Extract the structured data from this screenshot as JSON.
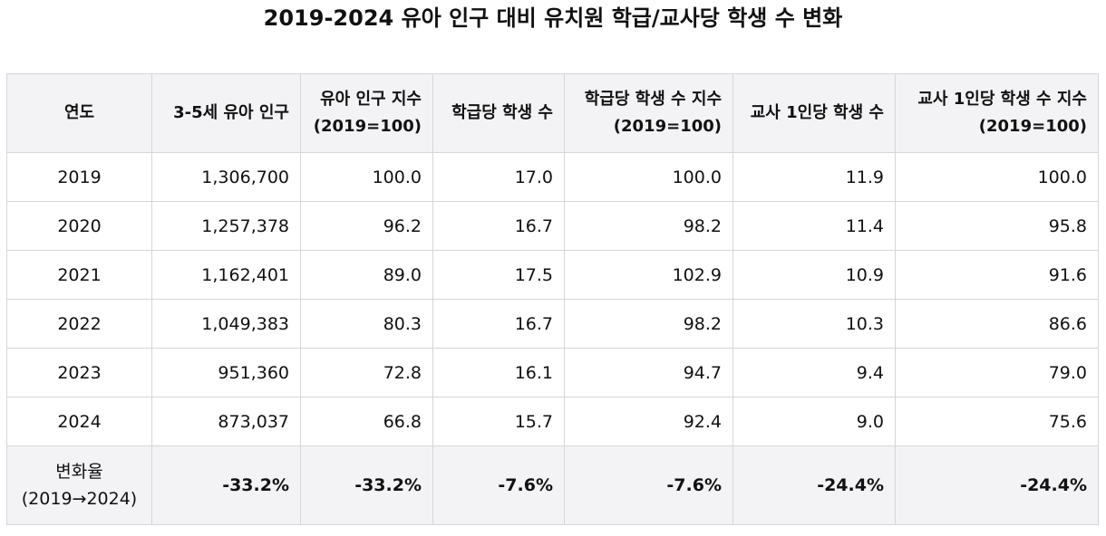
{
  "title": "2019-2024 유아 인구 대비 유치원 학급/교사당 학생 수 변화",
  "table": {
    "headers": [
      {
        "line1": "연도",
        "line2": ""
      },
      {
        "line1": "3-5세 유아 인구",
        "line2": ""
      },
      {
        "line1": "유아 인구 지수",
        "line2": "(2019=100)"
      },
      {
        "line1": "학급당 학생 수",
        "line2": ""
      },
      {
        "line1": "학급당 학생 수 지수",
        "line2": "(2019=100)"
      },
      {
        "line1": "교사 1인당 학생 수",
        "line2": ""
      },
      {
        "line1": "교사 1인당 학생 수 지수",
        "line2": "(2019=100)"
      }
    ],
    "rows": [
      [
        "2019",
        "1,306,700",
        "100.0",
        "17.0",
        "100.0",
        "11.9",
        "100.0"
      ],
      [
        "2020",
        "1,257,378",
        "96.2",
        "16.7",
        "98.2",
        "11.4",
        "95.8"
      ],
      [
        "2021",
        "1,162,401",
        "89.0",
        "17.5",
        "102.9",
        "10.9",
        "91.6"
      ],
      [
        "2022",
        "1,049,383",
        "80.3",
        "16.7",
        "98.2",
        "10.3",
        "86.6"
      ],
      [
        "2023",
        "951,360",
        "72.8",
        "16.1",
        "94.7",
        "9.4",
        "79.0"
      ],
      [
        "2024",
        "873,037",
        "66.8",
        "15.7",
        "92.4",
        "9.0",
        "75.6"
      ]
    ],
    "summary": {
      "label_line1": "변화율",
      "label_line2": "(2019→2024)",
      "values": [
        "-33.2%",
        "-33.2%",
        "-7.6%",
        "-7.6%",
        "-24.4%",
        "-24.4%"
      ]
    }
  }
}
